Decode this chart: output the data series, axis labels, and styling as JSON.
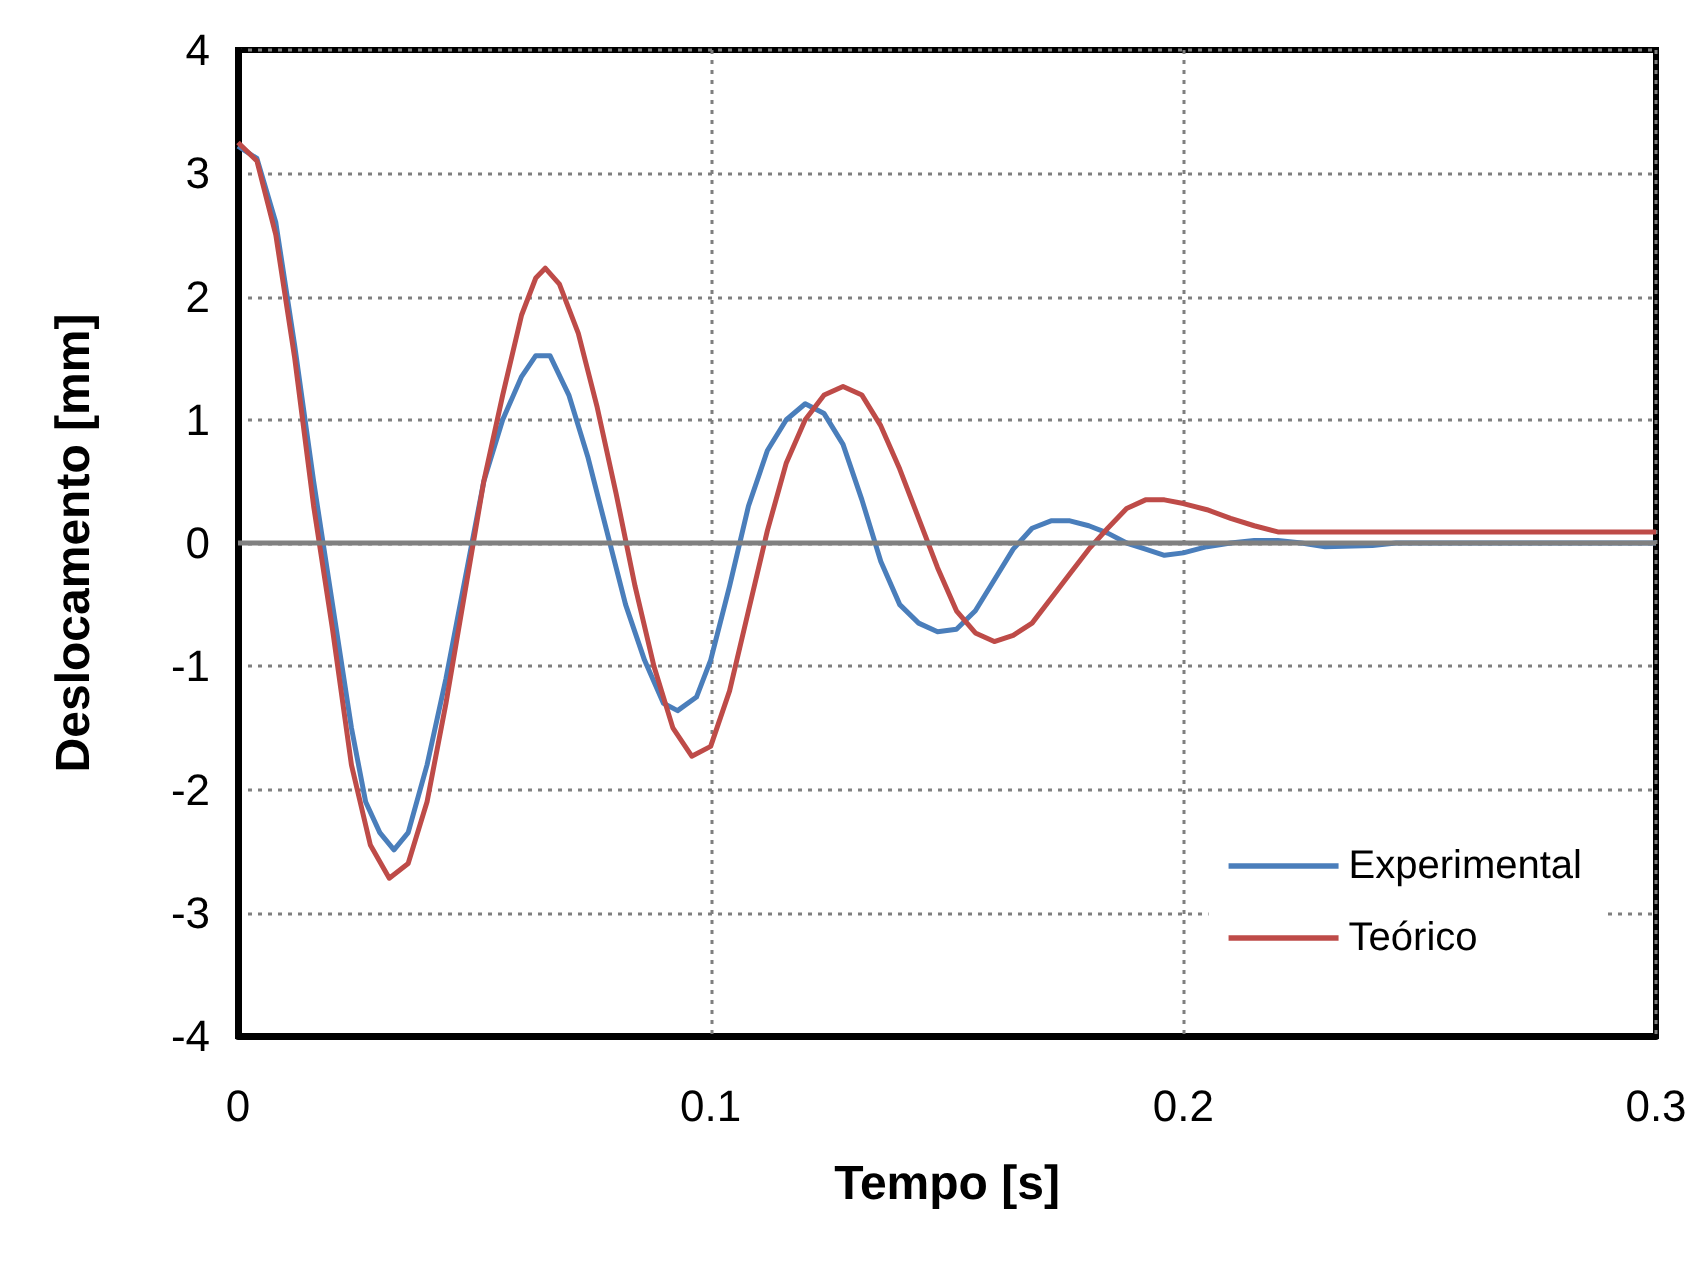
{
  "chart_data": {
    "type": "line",
    "xlabel": "Tempo [s]",
    "ylabel": "Deslocamento [mm]",
    "xlim": [
      0,
      0.3
    ],
    "xticks": [
      0,
      0.1,
      0.2,
      0.3
    ],
    "ylim": [
      -4,
      4
    ],
    "yticks": [
      -4,
      -3,
      -2,
      -1,
      0,
      1,
      2,
      3,
      4
    ],
    "grid": true,
    "legend": "bottom right",
    "line_style": "solid",
    "marker": "none",
    "ref_lines": [
      {
        "axis": "y",
        "value": 0,
        "color": "#808080"
      }
    ],
    "series": [
      {
        "name": "Experimental",
        "color": "#4a7ebb",
        "x": [
          0,
          0.004,
          0.008,
          0.012,
          0.016,
          0.02,
          0.024,
          0.027,
          0.03,
          0.033,
          0.036,
          0.04,
          0.044,
          0.048,
          0.052,
          0.056,
          0.06,
          0.063,
          0.066,
          0.07,
          0.074,
          0.078,
          0.082,
          0.086,
          0.09,
          0.093,
          0.097,
          0.1,
          0.104,
          0.108,
          0.112,
          0.116,
          0.12,
          0.124,
          0.128,
          0.132,
          0.136,
          0.14,
          0.144,
          0.148,
          0.152,
          0.156,
          0.16,
          0.164,
          0.168,
          0.172,
          0.176,
          0.18,
          0.184,
          0.188,
          0.192,
          0.196,
          0.2,
          0.205,
          0.21,
          0.215,
          0.22,
          0.225,
          0.23,
          0.24,
          0.245,
          0.3
        ],
        "values": [
          3.22,
          3.12,
          2.6,
          1.6,
          0.5,
          -0.5,
          -1.5,
          -2.1,
          -2.35,
          -2.49,
          -2.35,
          -1.8,
          -1.1,
          -0.3,
          0.5,
          1.0,
          1.35,
          1.52,
          1.52,
          1.2,
          0.7,
          0.1,
          -0.5,
          -0.95,
          -1.3,
          -1.36,
          -1.25,
          -0.95,
          -0.35,
          0.3,
          0.75,
          1.0,
          1.13,
          1.05,
          0.8,
          0.35,
          -0.15,
          -0.5,
          -0.65,
          -0.72,
          -0.7,
          -0.55,
          -0.3,
          -0.05,
          0.12,
          0.18,
          0.18,
          0.14,
          0.08,
          0.0,
          -0.05,
          -0.1,
          -0.08,
          -0.03,
          0.0,
          0.02,
          0.02,
          0.0,
          -0.03,
          -0.02,
          0.0,
          0.0
        ]
      },
      {
        "name": "Teórico",
        "color": "#be4b48",
        "x": [
          0,
          0.004,
          0.008,
          0.012,
          0.016,
          0.02,
          0.024,
          0.028,
          0.032,
          0.036,
          0.04,
          0.044,
          0.048,
          0.052,
          0.056,
          0.06,
          0.063,
          0.065,
          0.068,
          0.072,
          0.076,
          0.08,
          0.084,
          0.088,
          0.092,
          0.096,
          0.1,
          0.104,
          0.108,
          0.112,
          0.116,
          0.12,
          0.124,
          0.128,
          0.132,
          0.136,
          0.14,
          0.144,
          0.148,
          0.152,
          0.156,
          0.16,
          0.164,
          0.168,
          0.172,
          0.176,
          0.18,
          0.184,
          0.188,
          0.192,
          0.196,
          0.2,
          0.205,
          0.21,
          0.215,
          0.22,
          0.3
        ],
        "values": [
          3.25,
          3.1,
          2.5,
          1.5,
          0.3,
          -0.7,
          -1.8,
          -2.45,
          -2.72,
          -2.6,
          -2.1,
          -1.3,
          -0.4,
          0.5,
          1.2,
          1.85,
          2.15,
          2.23,
          2.1,
          1.7,
          1.1,
          0.4,
          -0.35,
          -1.0,
          -1.5,
          -1.73,
          -1.65,
          -1.2,
          -0.55,
          0.1,
          0.65,
          1.0,
          1.2,
          1.27,
          1.2,
          0.95,
          0.6,
          0.2,
          -0.2,
          -0.55,
          -0.73,
          -0.8,
          -0.75,
          -0.65,
          -0.45,
          -0.25,
          -0.05,
          0.12,
          0.28,
          0.35,
          0.35,
          0.32,
          0.27,
          0.2,
          0.14,
          0.09,
          0.09
        ]
      }
    ]
  }
}
